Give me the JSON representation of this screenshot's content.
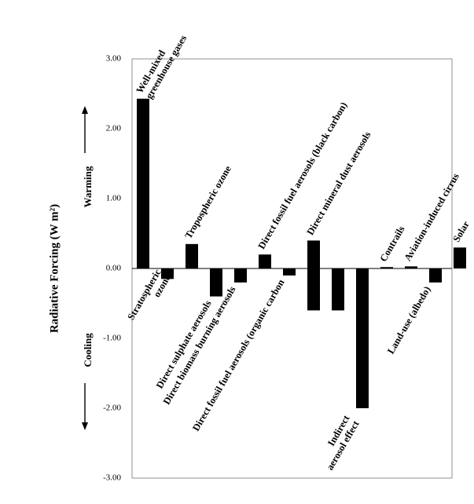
{
  "chart_data": {
    "type": "bar",
    "title": "",
    "xlabel": "",
    "ylabel": "Radiative Forcing (W m²)",
    "ylim": [
      -3,
      3
    ],
    "yticks": [
      "3.00",
      "2.00",
      "1.00",
      "0.00",
      "-1.00",
      "-2.00",
      "-3.00"
    ],
    "grid": false,
    "legend": "none",
    "direction_labels": {
      "up": "Warming",
      "down": "Cooling"
    },
    "bar_color": "#000000",
    "series": [
      {
        "values": [
          2.43,
          -0.15,
          0.35,
          -0.4,
          -0.2,
          0.2,
          -0.1,
          0.4,
          -0.6,
          -2.0,
          0.02,
          0.03,
          -0.2,
          0.3
        ],
        "low": [
          null,
          null,
          null,
          null,
          null,
          null,
          null,
          -0.6,
          null,
          null,
          null,
          null,
          null,
          null
        ]
      }
    ],
    "categories": [
      {
        "lines": [
          "Well-mixed",
          "greenhouse gases"
        ]
      },
      {
        "lines": [
          "Stratospheric",
          "ozone"
        ]
      },
      {
        "lines": [
          "Tropospheric ozone"
        ]
      },
      {
        "lines": [
          "Direct sulphate aerosols"
        ]
      },
      {
        "lines": [
          "Direct biomass burning aerosols"
        ]
      },
      {
        "lines": [
          "Direct fossil fuel aerosols (black carbon)"
        ]
      },
      {
        "lines": [
          "Direct fossil fuel aerosols (organic carbon"
        ]
      },
      {
        "lines": [
          "Direct mineral dust aerosols"
        ]
      },
      {
        "lines": []
      },
      {
        "lines": [
          "Indirect",
          "aerosol effect"
        ]
      },
      {
        "lines": [
          "Contrails"
        ]
      },
      {
        "lines": [
          "Aviation-induced cirrus"
        ]
      },
      {
        "lines": [
          "Land-use (albedo)"
        ]
      },
      {
        "lines": [
          "Solar"
        ]
      }
    ]
  }
}
